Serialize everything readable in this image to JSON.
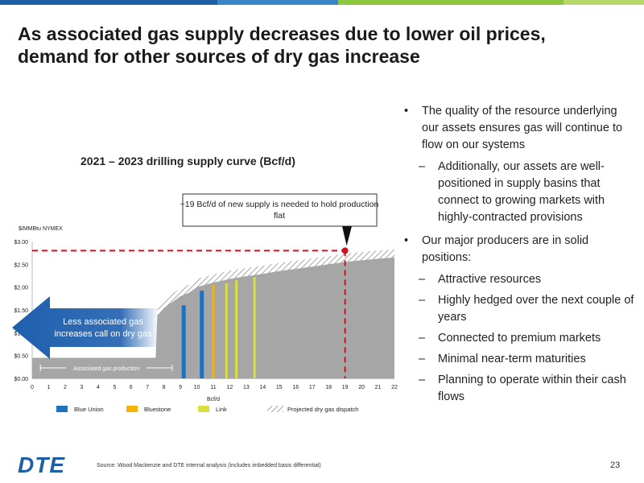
{
  "colors": {
    "bar_blue": "#1e73be",
    "bar_gold": "#f5b400",
    "bar_lime": "#d9e040",
    "bar_green": "#9ac43c",
    "dark_blue": "#0c2d6b",
    "red": "#cc1122",
    "gray": "#a6a6a6",
    "arrow": "#1e5fae"
  },
  "topbar_colors": [
    "#1f5fa6",
    "#3a86c8",
    "#8dc63f",
    "#b7d66a"
  ],
  "slide": {
    "title_line1": "As associated gas supply decreases due to lower oil prices,",
    "title_line2": "demand for other sources of dry gas increase",
    "page_number": "23",
    "logo": "DTE",
    "source": "Source: Wood Mackenzie and DTE internal analysis (includes imbedded basis differential)"
  },
  "bullets": [
    {
      "level": 1,
      "text": "The quality of the resource underlying our assets ensures gas will continue to flow on our systems"
    },
    {
      "level": 2,
      "text": "Additionally, our assets are well-positioned in supply basins that connect to growing markets with highly-contracted provisions"
    },
    {
      "level": 1,
      "text": "Our major producers are in solid positions:"
    },
    {
      "level": 2,
      "text": "Attractive resources"
    },
    {
      "level": 2,
      "text": "Highly hedged over the next couple of years"
    },
    {
      "level": 2,
      "text": "Connected to premium markets"
    },
    {
      "level": 2,
      "text": "Minimal near-term maturities"
    },
    {
      "level": 2,
      "text": "Planning to operate within their cash flows"
    }
  ],
  "chart_data": {
    "type": "area",
    "title": "2021 – 2023 drilling supply curve (Bcf/d)",
    "ylabel": "$/MMBtu NYMEX",
    "xlabel": "Bcf/d",
    "xlim": [
      0,
      22
    ],
    "ylim": [
      0,
      3.0
    ],
    "x_ticks": [
      0,
      1,
      2,
      3,
      4,
      5,
      6,
      7,
      8,
      9,
      10,
      11,
      12,
      13,
      14,
      15,
      16,
      17,
      18,
      19,
      20,
      21,
      22
    ],
    "y_ticks": [
      0,
      0.5,
      1.0,
      1.5,
      2.0,
      2.5,
      3.0
    ],
    "y_tick_labels": [
      "$0.00",
      "$0.50",
      "$1.00",
      "$1.50",
      "$2.00",
      "$2.50",
      "$3.00"
    ],
    "supply_curve": {
      "x": [
        0,
        7.5,
        7.6,
        8.0,
        8.5,
        9.0,
        9.5,
        10.0,
        11.0,
        12.0,
        13.0,
        14.0,
        15.0,
        16.0,
        17.0,
        18.0,
        19.0,
        20.0,
        21.0,
        22.0
      ],
      "y": [
        0.45,
        0.45,
        1.55,
        1.72,
        1.85,
        1.98,
        2.05,
        2.18,
        2.28,
        2.36,
        2.42,
        2.47,
        2.53,
        2.58,
        2.63,
        2.68,
        2.73,
        2.77,
        2.8,
        2.83
      ],
      "projected_band": 0.18
    },
    "highlight_bars": [
      {
        "x": 9.2,
        "y": 1.6,
        "series": "Blue Union"
      },
      {
        "x": 10.3,
        "y": 1.92,
        "series": "Blue Union"
      },
      {
        "x": 11.0,
        "y": 2.05,
        "series": "Bluestone"
      },
      {
        "x": 11.8,
        "y": 2.08,
        "series": "Link"
      },
      {
        "x": 12.4,
        "y": 2.15,
        "series": "Link"
      },
      {
        "x": 13.5,
        "y": 2.22,
        "series": "Link"
      }
    ],
    "price_line": 2.8,
    "demand_line_x": 19,
    "legend": [
      {
        "name": "Blue Union",
        "color": "#1e73be",
        "pattern": "solid"
      },
      {
        "name": "Bluestone",
        "color": "#f5b400",
        "pattern": "solid"
      },
      {
        "name": "Link",
        "color": "#d9e040",
        "pattern": "solid"
      },
      {
        "name": "Projected dry gas dispatch",
        "color": "#a6a6a6",
        "pattern": "hatch"
      }
    ],
    "callout": "~19 Bcf/d of new supply is needed to hold production flat",
    "arrow_text": "Less associated gas increases call on dry gas",
    "bracket_label": "Associated gas production",
    "bracket_x": [
      0.5,
      8.5
    ]
  }
}
